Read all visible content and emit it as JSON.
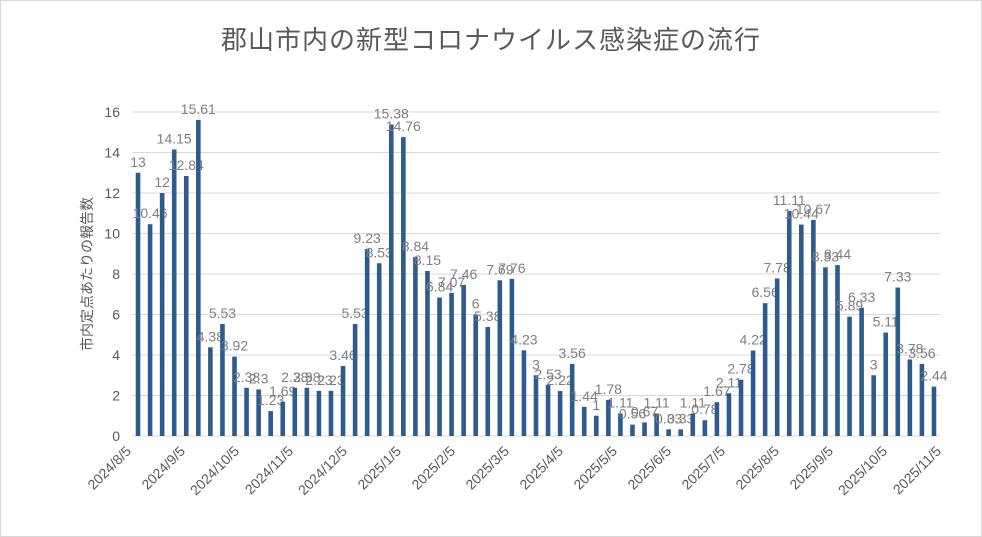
{
  "chart_data": {
    "type": "bar",
    "title": "郡山市内の新型コロナウイルス感染症の流行",
    "ylabel": "市内定点あたりの報告数",
    "xlabel": "",
    "ylim": [
      0,
      16
    ],
    "yticks": [
      0,
      2,
      4,
      6,
      8,
      10,
      12,
      14,
      16
    ],
    "grid": true,
    "bar_color": "#2e5b8e",
    "x_tick_labels": [
      "2024/8/5",
      "2024/9/5",
      "2024/10/5",
      "2024/11/5",
      "2024/12/5",
      "2025/1/5",
      "2025/2/5",
      "2025/3/5",
      "2025/4/5",
      "2025/5/5",
      "2025/6/5",
      "2025/7/5",
      "2025/8/5",
      "2025/9/5",
      "2025/10/5",
      "2025/11/5"
    ],
    "values": [
      13,
      10.46,
      12,
      14.15,
      12.84,
      15.61,
      4.38,
      5.53,
      3.92,
      2.38,
      2.3,
      1.23,
      1.69,
      2.38,
      2.38,
      2.23,
      2.23,
      3.46,
      5.53,
      9.23,
      8.53,
      15.38,
      14.76,
      8.84,
      8.15,
      6.84,
      7.07,
      7.46,
      6,
      5.38,
      7.69,
      7.76,
      4.23,
      3,
      2.53,
      2.22,
      3.56,
      1.44,
      1,
      1.78,
      1.11,
      0.56,
      0.67,
      1.11,
      0.33,
      0.33,
      1.11,
      0.78,
      1.67,
      2.11,
      2.78,
      4.22,
      6.56,
      7.78,
      11.11,
      10.44,
      10.67,
      8.33,
      8.44,
      5.89,
      6.33,
      3,
      5.11,
      7.33,
      3.78,
      3.56,
      2.44
    ]
  }
}
